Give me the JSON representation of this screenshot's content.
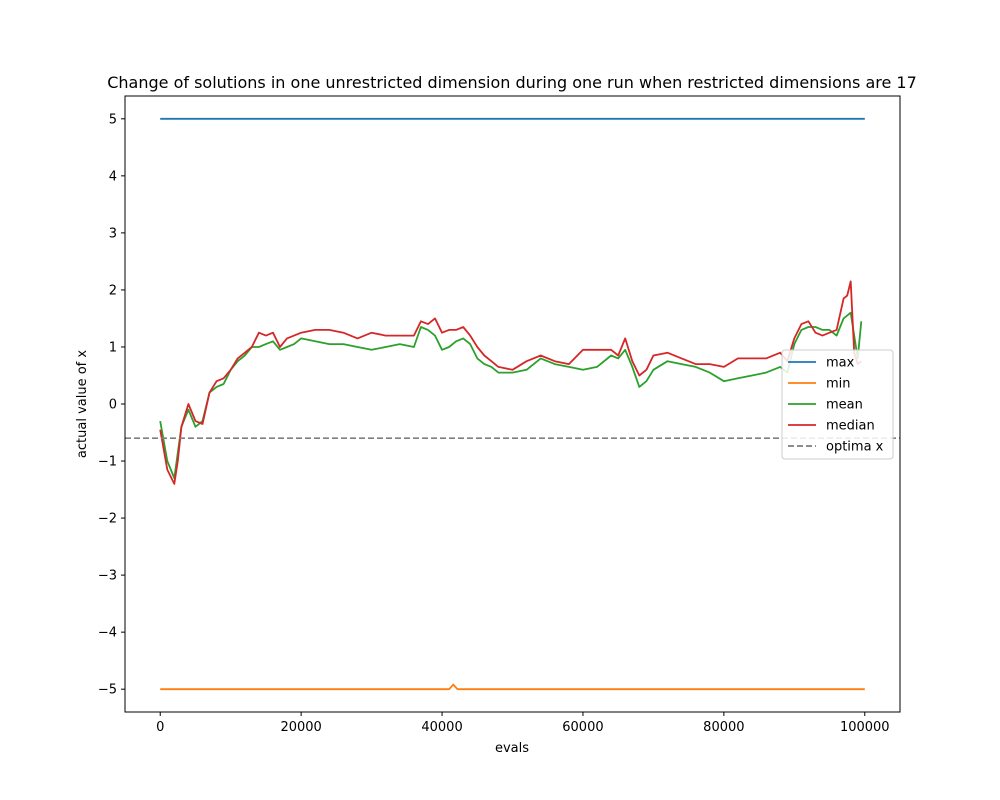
{
  "chart_data": {
    "type": "line",
    "title": "Change of solutions in one unrestricted dimension during one run when restricted dimensions are 17",
    "xlabel": "evals",
    "ylabel": "actual value of x",
    "xlim": [
      -5000,
      105000
    ],
    "ylim": [
      -5.4,
      5.4
    ],
    "xticks": [
      0,
      20000,
      40000,
      60000,
      80000,
      100000
    ],
    "xtick_labels": [
      "0",
      "20000",
      "40000",
      "60000",
      "80000",
      "100000"
    ],
    "yticks": [
      5,
      4,
      3,
      2,
      1,
      0,
      -1,
      -2,
      -3,
      -4,
      -5
    ],
    "ytick_labels": [
      "5",
      "4",
      "3",
      "2",
      "1",
      "0",
      "−1",
      "−2",
      "−3",
      "−4",
      "−5"
    ],
    "grid": false,
    "legend_position": "right",
    "series": [
      {
        "name": "max",
        "color": "#1f77b4",
        "x": [
          0,
          100000
        ],
        "y": [
          5,
          5
        ]
      },
      {
        "name": "min",
        "color": "#ff7f0e",
        "x": [
          0,
          41000,
          41600,
          42200,
          100000
        ],
        "y": [
          -5,
          -5,
          -4.92,
          -5,
          -5
        ]
      },
      {
        "name": "mean",
        "color": "#2ca02c",
        "x": [
          0,
          1000,
          2000,
          3000,
          4000,
          5000,
          6000,
          7000,
          8000,
          9000,
          10000,
          11000,
          12000,
          13000,
          14000,
          15000,
          16000,
          17000,
          18000,
          19000,
          20000,
          22000,
          24000,
          26000,
          28000,
          30000,
          32000,
          34000,
          36000,
          37000,
          38000,
          39000,
          40000,
          41000,
          42000,
          43000,
          44000,
          45000,
          46000,
          47000,
          48000,
          50000,
          52000,
          54000,
          56000,
          58000,
          60000,
          62000,
          64000,
          65000,
          66000,
          67000,
          68000,
          69000,
          70000,
          72000,
          74000,
          76000,
          78000,
          80000,
          82000,
          84000,
          86000,
          88000,
          89000,
          90000,
          91000,
          92000,
          93000,
          94000,
          95000,
          96000,
          97000,
          98000,
          99000,
          99500
        ],
        "y": [
          -0.3,
          -1.0,
          -1.3,
          -0.4,
          -0.1,
          -0.4,
          -0.3,
          0.2,
          0.3,
          0.35,
          0.6,
          0.75,
          0.85,
          1.0,
          1.0,
          1.05,
          1.1,
          0.95,
          1.0,
          1.05,
          1.15,
          1.1,
          1.05,
          1.05,
          1.0,
          0.95,
          1.0,
          1.05,
          1.0,
          1.35,
          1.3,
          1.2,
          0.95,
          1.0,
          1.1,
          1.15,
          1.05,
          0.8,
          0.7,
          0.65,
          0.55,
          0.55,
          0.6,
          0.8,
          0.7,
          0.65,
          0.6,
          0.65,
          0.85,
          0.8,
          0.95,
          0.65,
          0.3,
          0.4,
          0.6,
          0.75,
          0.7,
          0.65,
          0.55,
          0.4,
          0.45,
          0.5,
          0.55,
          0.65,
          0.55,
          1.05,
          1.3,
          1.35,
          1.35,
          1.3,
          1.3,
          1.2,
          1.5,
          1.6,
          0.8,
          1.45
        ]
      },
      {
        "name": "median",
        "color": "#d62728",
        "x": [
          0,
          1000,
          2000,
          2500,
          3000,
          4000,
          5000,
          6000,
          7000,
          8000,
          9000,
          10000,
          11000,
          12000,
          13000,
          14000,
          15000,
          16000,
          17000,
          18000,
          19000,
          20000,
          22000,
          24000,
          26000,
          28000,
          30000,
          32000,
          34000,
          36000,
          37000,
          38000,
          39000,
          40000,
          41000,
          42000,
          43000,
          44000,
          45000,
          46000,
          47000,
          48000,
          50000,
          52000,
          54000,
          56000,
          58000,
          60000,
          62000,
          64000,
          65000,
          66000,
          67000,
          68000,
          69000,
          70000,
          72000,
          74000,
          76000,
          78000,
          80000,
          82000,
          84000,
          86000,
          88000,
          89000,
          90000,
          91000,
          92000,
          93000,
          94000,
          95000,
          96000,
          97000,
          97500,
          98000,
          98500,
          99000,
          99500
        ],
        "y": [
          -0.45,
          -1.15,
          -1.4,
          -1.0,
          -0.4,
          0.0,
          -0.3,
          -0.35,
          0.2,
          0.4,
          0.45,
          0.6,
          0.8,
          0.9,
          1.0,
          1.25,
          1.2,
          1.25,
          1.0,
          1.15,
          1.2,
          1.25,
          1.3,
          1.3,
          1.25,
          1.15,
          1.25,
          1.2,
          1.2,
          1.2,
          1.45,
          1.4,
          1.5,
          1.25,
          1.3,
          1.3,
          1.35,
          1.2,
          1.0,
          0.85,
          0.75,
          0.65,
          0.6,
          0.75,
          0.85,
          0.75,
          0.7,
          0.95,
          0.95,
          0.95,
          0.85,
          1.15,
          0.75,
          0.5,
          0.6,
          0.85,
          0.9,
          0.8,
          0.7,
          0.7,
          0.65,
          0.8,
          0.8,
          0.8,
          0.9,
          0.75,
          1.15,
          1.4,
          1.45,
          1.25,
          1.2,
          1.25,
          1.3,
          1.85,
          1.9,
          2.15,
          0.9,
          0.7,
          0.75
        ]
      },
      {
        "name": "optima x",
        "color": "#7f7f7f",
        "dashed": true,
        "horizontal": true,
        "y": [
          -0.6
        ]
      }
    ]
  }
}
